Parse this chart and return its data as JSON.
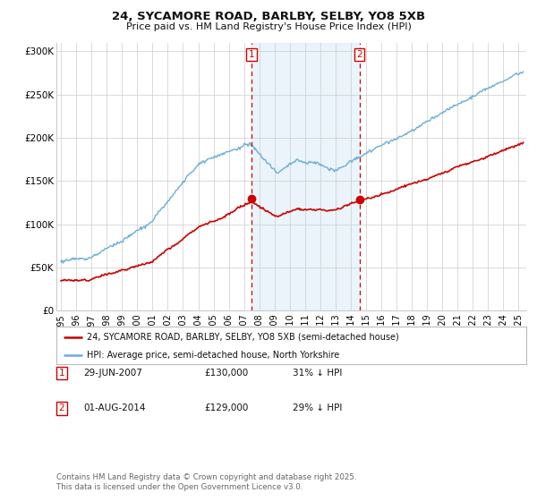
{
  "title": "24, SYCAMORE ROAD, BARLBY, SELBY, YO8 5XB",
  "subtitle": "Price paid vs. HM Land Registry's House Price Index (HPI)",
  "legend_line1": "24, SYCAMORE ROAD, BARLBY, SELBY, YO8 5XB (semi-detached house)",
  "legend_line2": "HPI: Average price, semi-detached house, North Yorkshire",
  "marker1_date": "29-JUN-2007",
  "marker1_price": 130000,
  "marker1_label": "31% ↓ HPI",
  "marker1_x": 2007.49,
  "marker2_date": "01-AUG-2014",
  "marker2_price": 129000,
  "marker2_label": "29% ↓ HPI",
  "marker2_x": 2014.58,
  "hpi_color": "#6baed6",
  "price_color": "#cc0000",
  "marker_color": "#cc0000",
  "bg_color": "#ffffff",
  "plot_bg_color": "#ffffff",
  "grid_color": "#cccccc",
  "shade_color": "#ddeef8",
  "footnote": "Contains HM Land Registry data © Crown copyright and database right 2025.\nThis data is licensed under the Open Government Licence v3.0.",
  "ylim": [
    0,
    310000
  ],
  "xlim": [
    1994.7,
    2025.5
  ],
  "yticks": [
    0,
    50000,
    100000,
    150000,
    200000,
    250000,
    300000
  ],
  "ytick_labels": [
    "£0",
    "£50K",
    "£100K",
    "£150K",
    "£200K",
    "£250K",
    "£300K"
  ]
}
